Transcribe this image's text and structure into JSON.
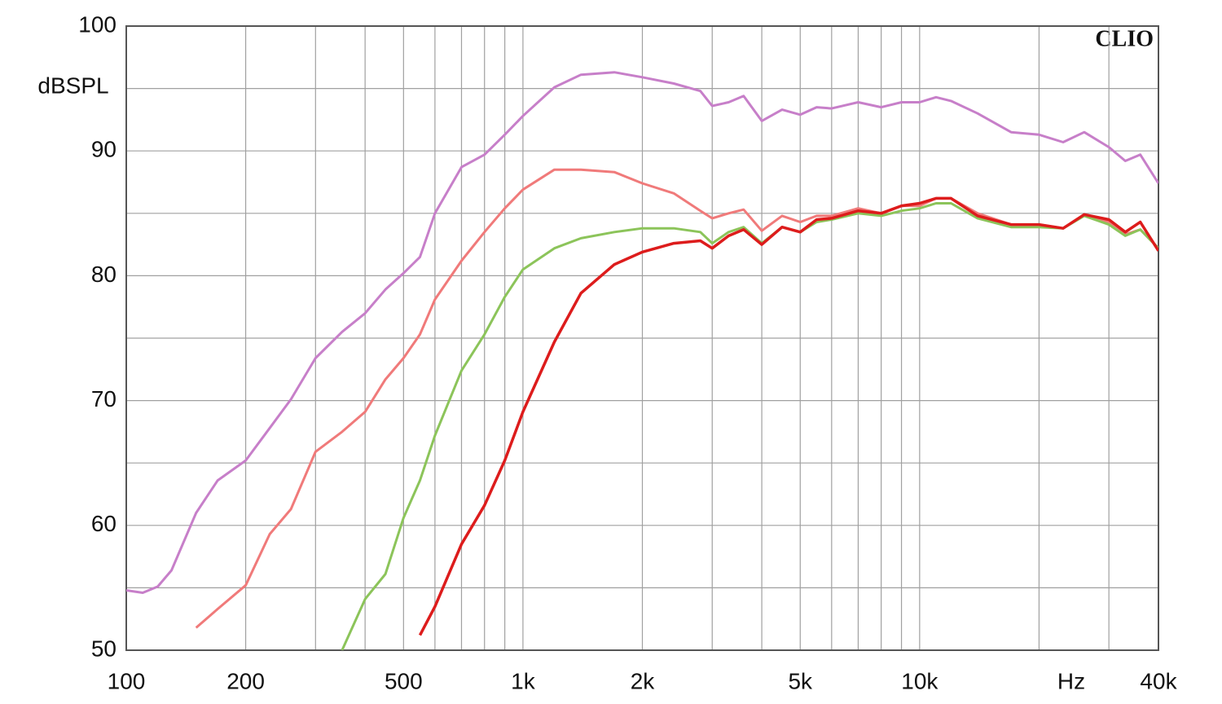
{
  "chart_data": {
    "type": "line",
    "brand": "CLIO",
    "y_label": "dBSPL",
    "x_unit": "Hz",
    "xscale": "log",
    "grid": true,
    "xlim": [
      100,
      40000
    ],
    "ylim": [
      50,
      100
    ],
    "xticks": [
      100,
      200,
      500,
      {
        "value": 1000,
        "label": "1k"
      },
      {
        "value": 2000,
        "label": "2k"
      },
      {
        "value": 5000,
        "label": "5k"
      },
      {
        "value": 10000,
        "label": "10k"
      },
      {
        "value": 40000,
        "label": "40k"
      }
    ],
    "xminor": [
      300,
      400,
      600,
      700,
      800,
      900,
      3000,
      4000,
      6000,
      7000,
      8000,
      9000,
      20000,
      30000
    ],
    "yticks": [
      50,
      60,
      70,
      80,
      90,
      100
    ],
    "yminor": [
      55,
      65,
      75,
      85,
      95
    ],
    "x": [
      100,
      110,
      120,
      130,
      150,
      170,
      200,
      230,
      260,
      300,
      350,
      400,
      450,
      500,
      550,
      600,
      700,
      800,
      900,
      1000,
      1200,
      1400,
      1700,
      2000,
      2400,
      2800,
      3000,
      3300,
      3600,
      4000,
      4500,
      5000,
      5500,
      6000,
      7000,
      8000,
      9000,
      10000,
      11000,
      12000,
      14000,
      17000,
      20000,
      23000,
      26000,
      30000,
      33000,
      36000,
      40000
    ],
    "series": [
      {
        "color": "#c77fc9",
        "values": [
          54.8,
          54.6,
          55.1,
          56.4,
          61.0,
          63.6,
          65.2,
          67.8,
          70.1,
          73.4,
          75.5,
          77.0,
          78.9,
          80.2,
          81.5,
          85.0,
          88.7,
          89.7,
          91.3,
          92.8,
          95.1,
          96.1,
          96.3,
          95.9,
          95.4,
          94.8,
          93.6,
          93.9,
          94.4,
          92.4,
          93.3,
          92.9,
          93.5,
          93.4,
          93.9,
          93.5,
          93.9,
          93.9,
          94.3,
          94.0,
          93.0,
          91.5,
          91.3,
          90.7,
          91.5,
          90.3,
          89.2,
          89.7,
          87.4
        ]
      },
      {
        "color": "#f07a7a",
        "values": [
          null,
          null,
          null,
          null,
          51.8,
          53.3,
          55.2,
          59.3,
          61.3,
          65.9,
          67.5,
          69.1,
          71.7,
          73.4,
          75.3,
          78.1,
          81.2,
          83.5,
          85.4,
          86.9,
          88.5,
          88.5,
          88.3,
          87.4,
          86.6,
          85.2,
          84.6,
          85.0,
          85.3,
          83.6,
          84.8,
          84.3,
          84.8,
          84.8,
          85.4,
          85.0,
          85.6,
          85.6,
          86.2,
          86.2,
          85.0,
          84.1,
          84.1,
          83.8,
          84.9,
          84.3,
          83.3,
          83.7,
          82.2
        ]
      },
      {
        "color": "#8cc45a",
        "values": [
          null,
          null,
          null,
          null,
          null,
          null,
          null,
          null,
          null,
          null,
          50.0,
          54.1,
          56.1,
          60.6,
          63.6,
          67.2,
          72.4,
          75.3,
          78.3,
          80.5,
          82.2,
          83.0,
          83.5,
          83.8,
          83.8,
          83.5,
          82.6,
          83.5,
          83.9,
          82.6,
          83.9,
          83.5,
          84.3,
          84.5,
          85.0,
          84.8,
          85.2,
          85.4,
          85.8,
          85.8,
          84.6,
          83.9,
          83.9,
          83.8,
          84.8,
          84.1,
          83.2,
          83.7,
          82.2
        ]
      },
      {
        "color": "#dd1c1c",
        "values": [
          null,
          null,
          null,
          null,
          null,
          null,
          null,
          null,
          null,
          null,
          null,
          null,
          null,
          null,
          51.2,
          53.5,
          58.5,
          61.6,
          65.2,
          69.1,
          74.7,
          78.6,
          80.9,
          81.9,
          82.6,
          82.8,
          82.2,
          83.2,
          83.7,
          82.5,
          83.9,
          83.5,
          84.5,
          84.6,
          85.2,
          85.0,
          85.6,
          85.8,
          86.2,
          86.2,
          84.8,
          84.1,
          84.1,
          83.8,
          84.9,
          84.5,
          83.5,
          84.3,
          82.0
        ]
      }
    ]
  }
}
